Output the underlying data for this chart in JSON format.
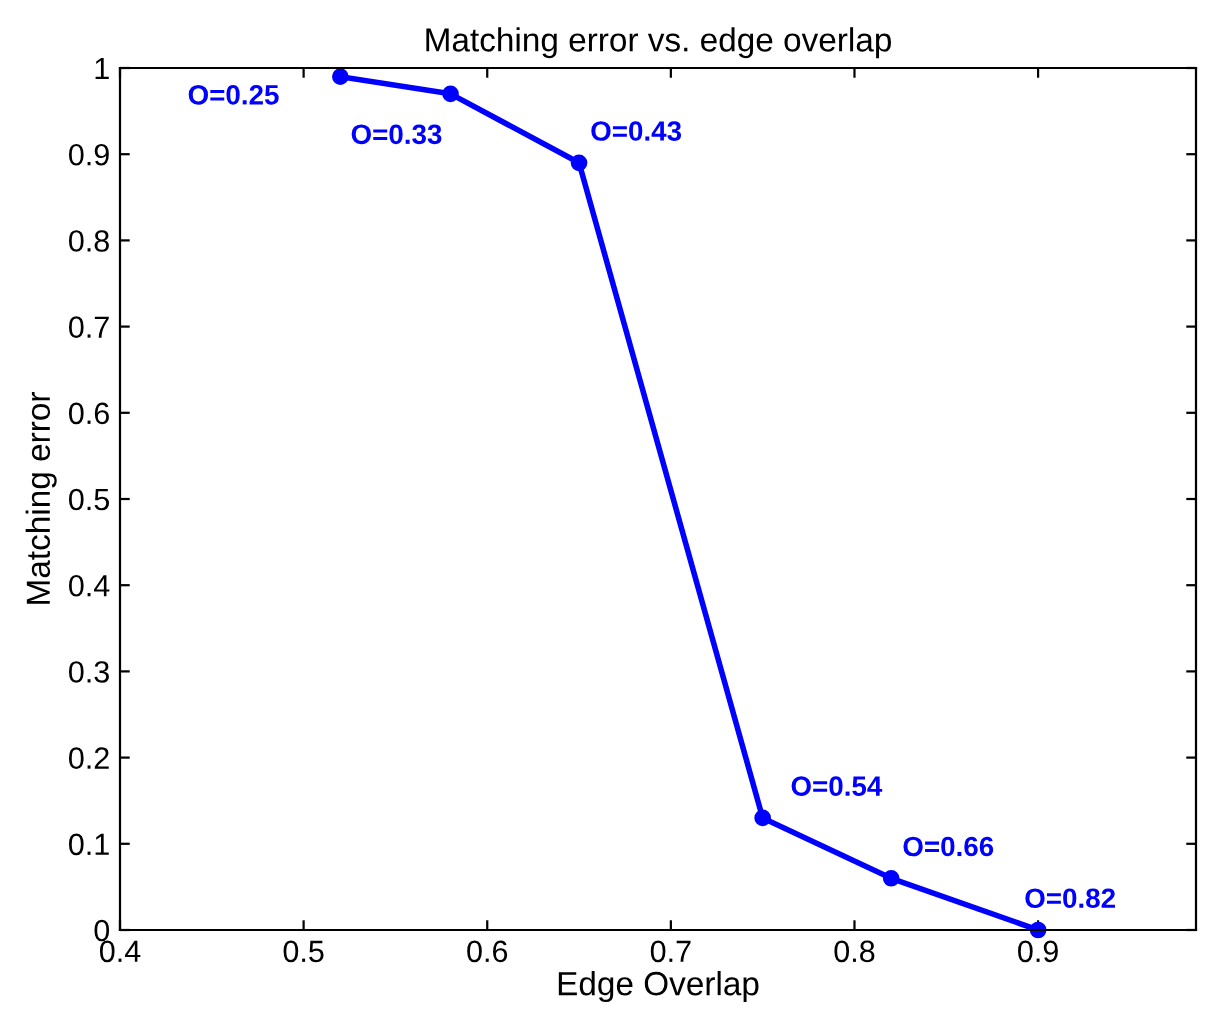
{
  "chart_data": {
    "type": "line",
    "title": "Matching error vs. edge overlap",
    "xlabel": "Edge Overlap",
    "ylabel": "Matching error",
    "x": [
      0.52,
      0.58,
      0.65,
      0.75,
      0.82,
      0.9
    ],
    "series": [
      {
        "color": "#0000ff",
        "values": [
          0.99,
          0.97,
          0.89,
          0.13,
          0.06,
          0.0
        ]
      }
    ],
    "marker": "circle",
    "line_style": "solid",
    "grid": false,
    "legend": false,
    "xlim": [
      0.4,
      0.986
    ],
    "xticks": [
      0.4,
      0.5,
      0.6,
      0.7,
      0.8,
      0.9
    ],
    "ylim": [
      0,
      1
    ],
    "yticks": [
      0,
      0.1,
      0.2,
      0.3,
      0.4,
      0.5,
      0.6,
      0.7,
      0.8,
      0.9,
      1
    ],
    "annotations": [
      {
        "text": "O=0.25",
        "x": 0.52,
        "y": 0.99
      },
      {
        "text": "O=0.33",
        "x": 0.58,
        "y": 0.97
      },
      {
        "text": "O=0.43",
        "x": 0.65,
        "y": 0.89
      },
      {
        "text": "O=0.54",
        "x": 0.75,
        "y": 0.13
      },
      {
        "text": "O=0.66",
        "x": 0.82,
        "y": 0.06
      },
      {
        "text": "O=0.82",
        "x": 0.9,
        "y": 0.0
      }
    ]
  }
}
